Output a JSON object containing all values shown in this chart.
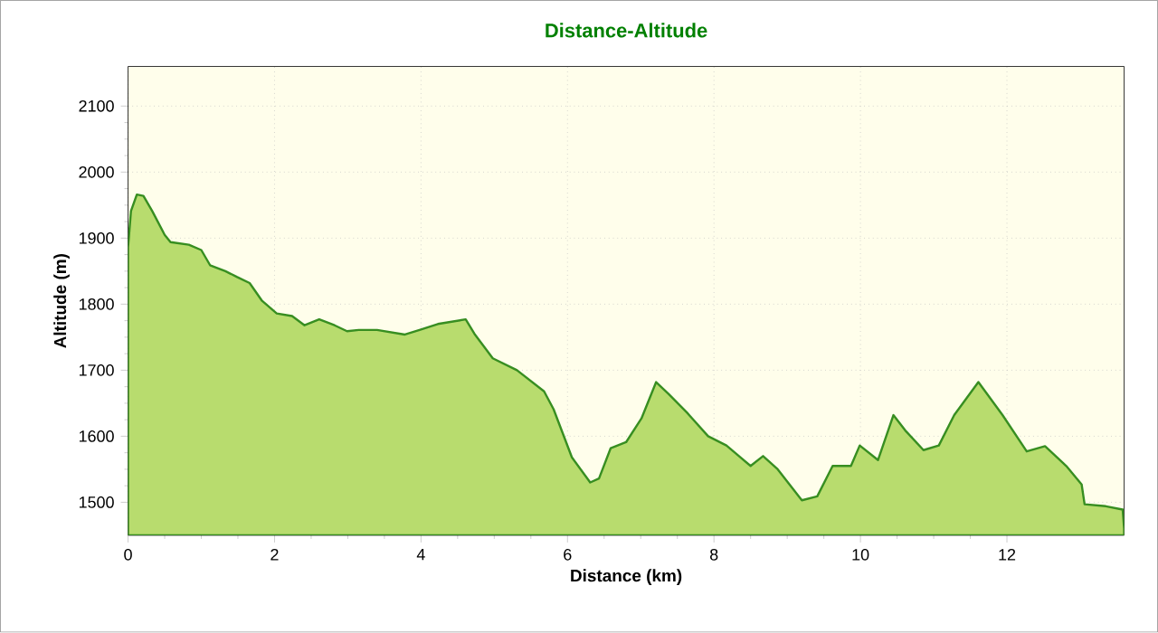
{
  "chart_data": {
    "type": "area",
    "title": "Distance-Altitude",
    "xlabel": "Distance (km)",
    "ylabel": "Altitude (m)",
    "xlim": [
      0,
      13.6
    ],
    "ylim": [
      1450,
      2160
    ],
    "xticks": [
      0,
      2,
      4,
      6,
      8,
      10,
      12
    ],
    "yticks": [
      1500,
      1600,
      1700,
      1800,
      1900,
      2000,
      2100
    ],
    "grid": true,
    "series": [
      {
        "color": "#b8dc6e",
        "x": [
          0,
          0.04,
          0.12,
          0.21,
          0.33,
          0.5,
          0.58,
          0.83,
          1.0,
          1.12,
          1.33,
          1.49,
          1.66,
          1.83,
          2.03,
          2.24,
          2.41,
          2.61,
          2.82,
          2.99,
          3.15,
          3.4,
          3.78,
          3.98,
          4.23,
          4.61,
          4.73,
          4.98,
          5.31,
          5.68,
          5.81,
          6.06,
          6.31,
          6.43,
          6.59,
          6.8,
          7.01,
          7.21,
          7.38,
          7.63,
          7.92,
          8.17,
          8.5,
          8.67,
          8.87,
          9.2,
          9.41,
          9.62,
          9.87,
          9.99,
          10.24,
          10.45,
          10.61,
          10.86,
          11.07,
          11.28,
          11.61,
          11.94,
          12.27,
          12.52,
          12.81,
          13.02,
          13.06,
          13.35,
          13.58,
          13.6
        ],
        "values": [
          1886,
          1941,
          1966,
          1964,
          1941,
          1905,
          1894,
          1890,
          1882,
          1859,
          1850,
          1841,
          1832,
          1805,
          1786,
          1782,
          1768,
          1777,
          1768,
          1759,
          1761,
          1761,
          1754,
          1761,
          1770,
          1777,
          1755,
          1718,
          1700,
          1668,
          1641,
          1568,
          1530,
          1536,
          1582,
          1591,
          1627,
          1682,
          1664,
          1636,
          1600,
          1586,
          1555,
          1570,
          1550,
          1503,
          1509,
          1555,
          1555,
          1586,
          1564,
          1632,
          1609,
          1579,
          1586,
          1632,
          1682,
          1632,
          1577,
          1585,
          1555,
          1527,
          1497,
          1494,
          1489,
          1460
        ]
      }
    ]
  }
}
